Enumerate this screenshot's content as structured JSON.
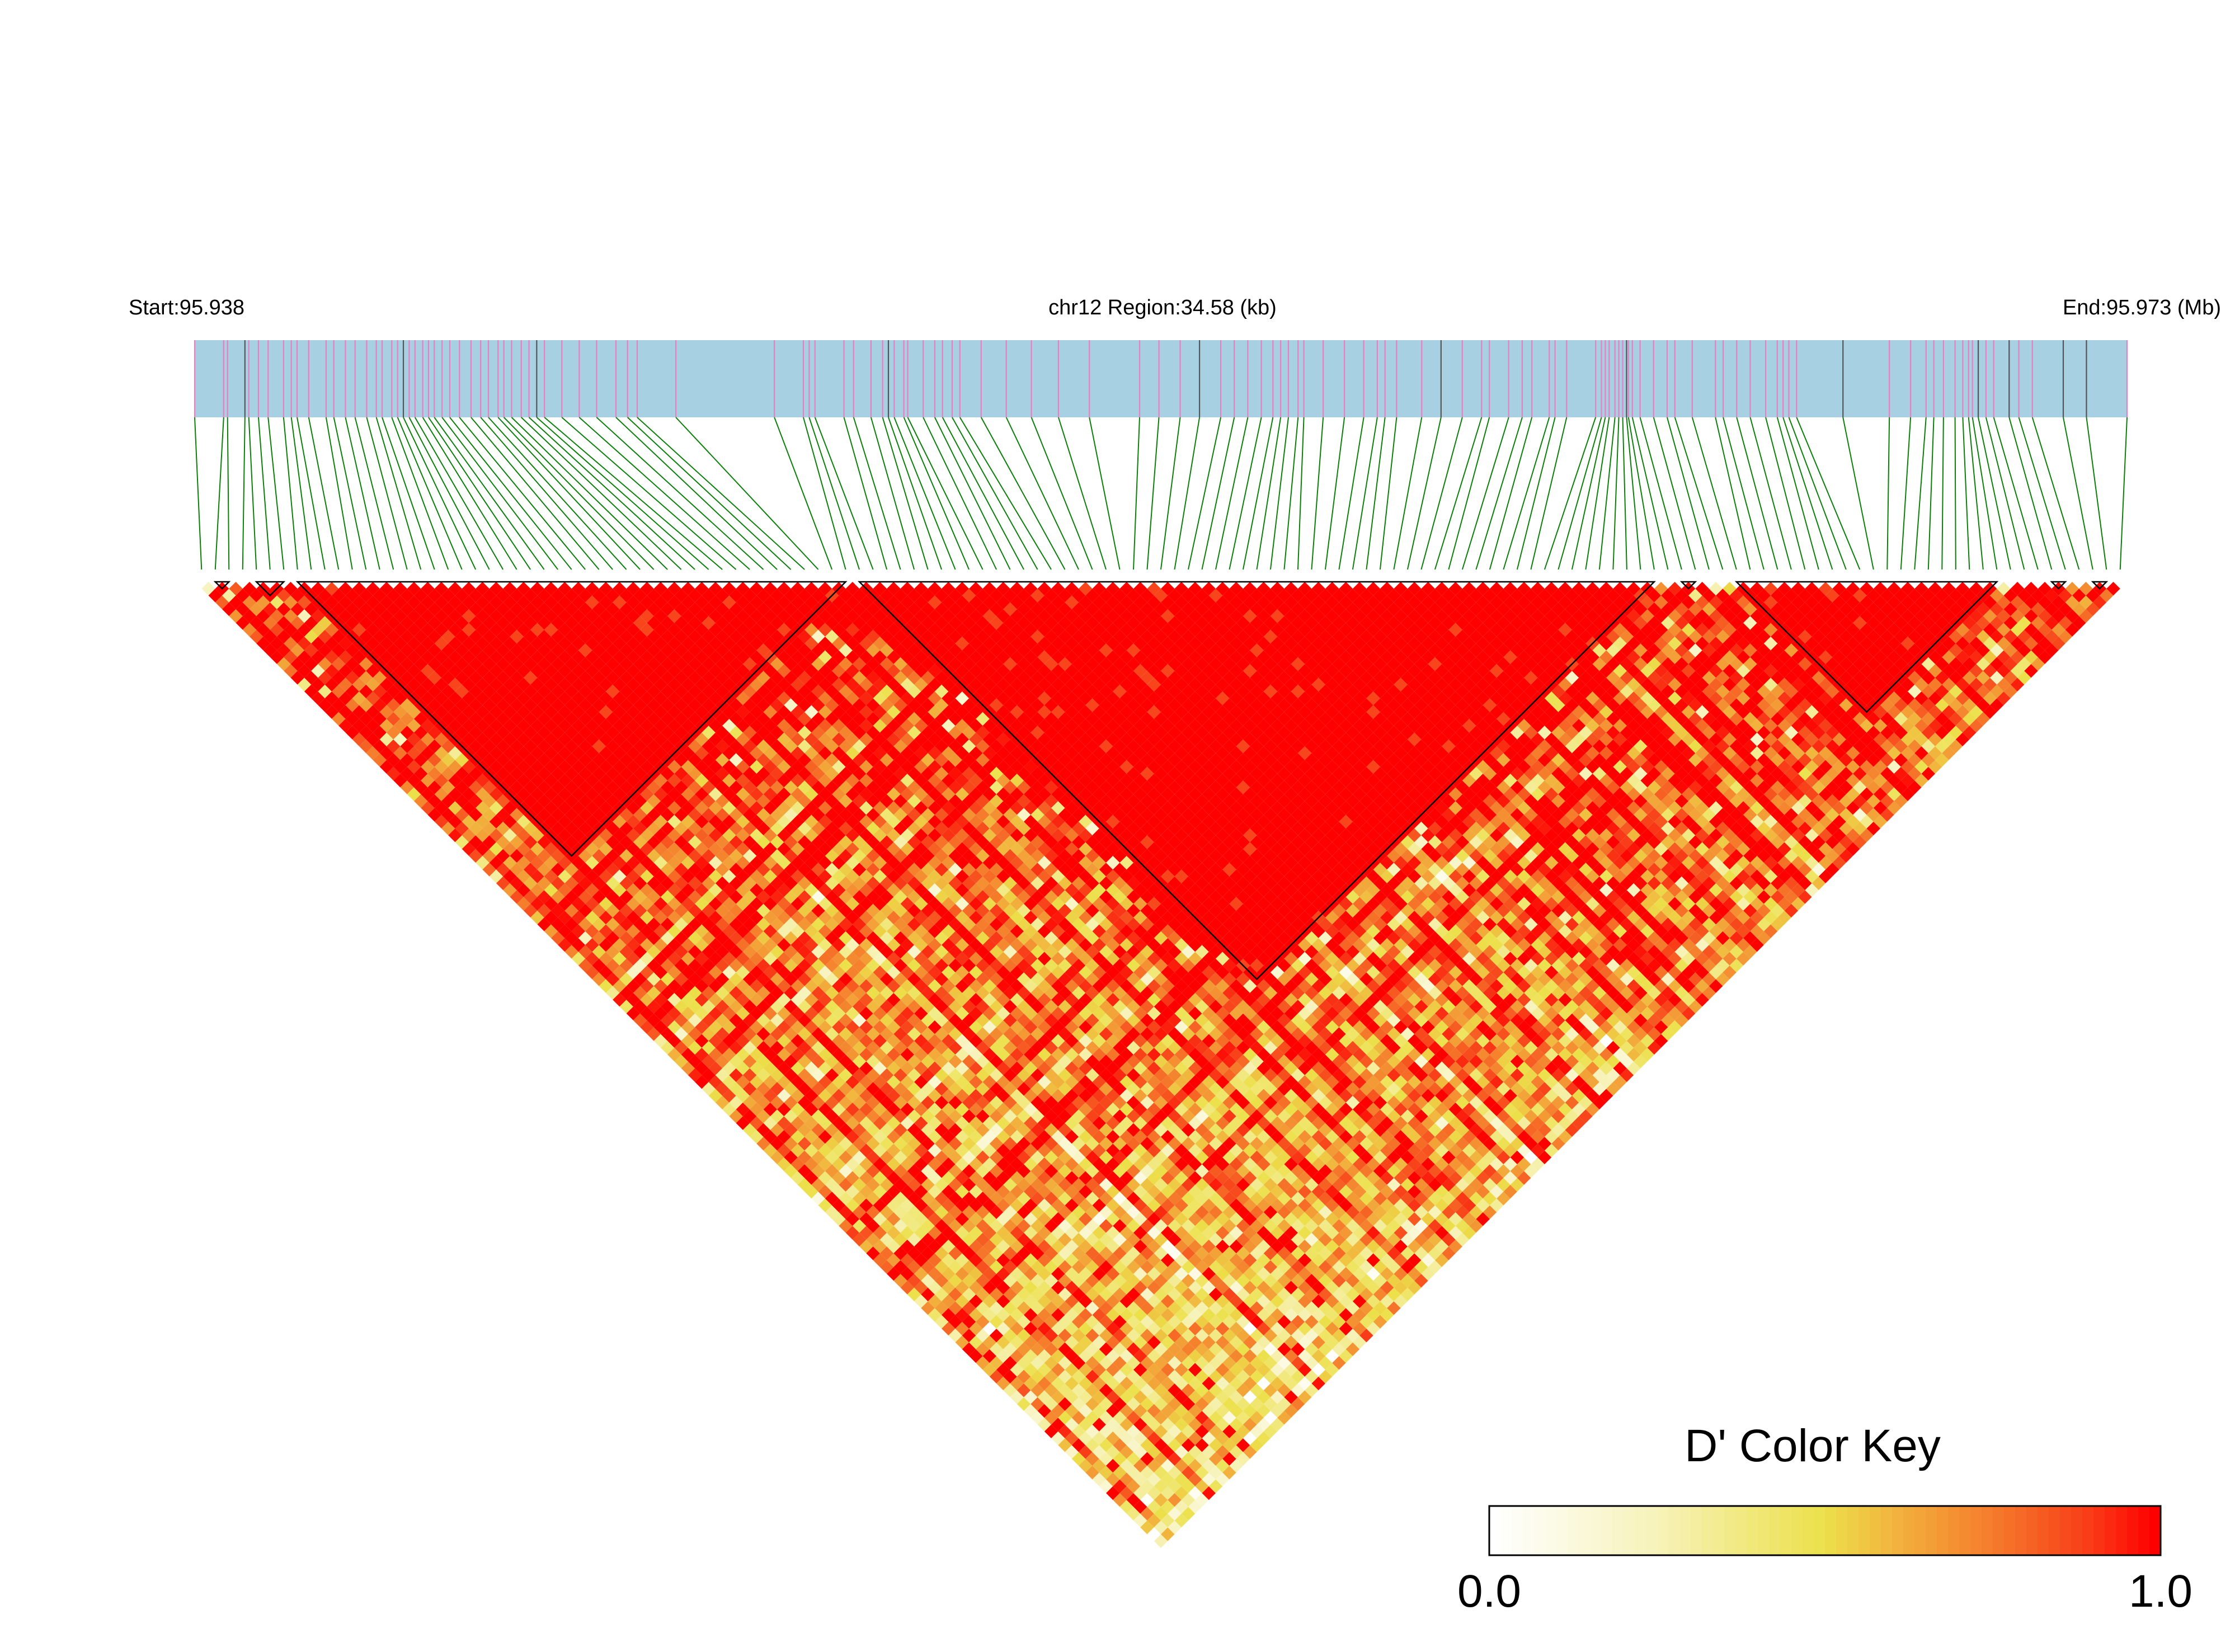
{
  "chart_data": {
    "type": "heatmap",
    "title": "",
    "header": {
      "start_label": "Start:95.938",
      "region_label": "chr12 Region:34.58 (kb)",
      "end_label": "End:95.973 (Mb)"
    },
    "region": {
      "chromosome": "chr12",
      "start_mb": 95.938,
      "end_mb": 95.973,
      "length_kb": 34.58
    },
    "n_snps": 141,
    "snp_positions_relative": [
      0.0,
      0.015,
      0.017,
      0.026,
      0.028,
      0.033,
      0.038,
      0.046,
      0.05,
      0.053,
      0.059,
      0.068,
      0.072,
      0.078,
      0.083,
      0.089,
      0.094,
      0.097,
      0.102,
      0.105,
      0.108,
      0.111,
      0.114,
      0.118,
      0.121,
      0.124,
      0.128,
      0.132,
      0.137,
      0.143,
      0.148,
      0.152,
      0.157,
      0.16,
      0.164,
      0.169,
      0.173,
      0.177,
      0.181,
      0.19,
      0.199,
      0.208,
      0.218,
      0.224,
      0.229,
      0.249,
      0.3,
      0.315,
      0.318,
      0.321,
      0.336,
      0.341,
      0.35,
      0.356,
      0.359,
      0.362,
      0.367,
      0.369,
      0.377,
      0.383,
      0.387,
      0.392,
      0.396,
      0.407,
      0.42,
      0.433,
      0.447,
      0.463,
      0.489,
      0.499,
      0.51,
      0.52,
      0.531,
      0.538,
      0.545,
      0.552,
      0.558,
      0.562,
      0.566,
      0.571,
      0.574,
      0.584,
      0.595,
      0.605,
      0.612,
      0.616,
      0.622,
      0.635,
      0.645,
      0.656,
      0.666,
      0.67,
      0.68,
      0.687,
      0.692,
      0.701,
      0.704,
      0.71,
      0.725,
      0.728,
      0.73,
      0.732,
      0.735,
      0.737,
      0.739,
      0.741,
      0.742,
      0.744,
      0.748,
      0.755,
      0.762,
      0.766,
      0.775,
      0.787,
      0.791,
      0.798,
      0.805,
      0.813,
      0.819,
      0.822,
      0.825,
      0.829,
      0.853,
      0.877,
      0.888,
      0.896,
      0.9,
      0.905,
      0.911,
      0.915,
      0.918,
      0.92,
      0.923,
      0.927,
      0.931,
      0.939,
      0.944,
      0.951,
      0.967,
      0.979,
      1.0
    ],
    "snp_marker_colors": {
      "track_background": "#a8d0e3",
      "marker_pink": "#e87fc3",
      "marker_dark": "#555555",
      "connector": "#0a7f0a"
    },
    "ld_blocks": [
      {
        "first_snp": 1,
        "last_snp": 2
      },
      {
        "first_snp": 4,
        "last_snp": 6
      },
      {
        "first_snp": 7,
        "last_snp": 47
      },
      {
        "first_snp": 48,
        "last_snp": 106
      },
      {
        "first_snp": 108,
        "last_snp": 109
      },
      {
        "first_snp": 112,
        "last_snp": 131
      },
      {
        "first_snp": 135,
        "last_snp": 136
      },
      {
        "first_snp": 138,
        "last_snp": 139
      }
    ],
    "metric": "D'",
    "ylim": [
      0,
      1
    ],
    "grid": false,
    "color_key": {
      "title": "D' Color Key",
      "min_label": "0.0",
      "max_label": "1.0",
      "min": 0.0,
      "max": 1.0,
      "placement": "bottom-right",
      "stops": [
        {
          "value": 0.0,
          "color": "#ffffff"
        },
        {
          "value": 0.25,
          "color": "#f7f2b8"
        },
        {
          "value": 0.5,
          "color": "#ece04a"
        },
        {
          "value": 0.62,
          "color": "#f2ae3c"
        },
        {
          "value": 0.75,
          "color": "#f57d2c"
        },
        {
          "value": 0.9,
          "color": "#f83c18"
        },
        {
          "value": 1.0,
          "color": "#ff0000"
        }
      ]
    }
  }
}
